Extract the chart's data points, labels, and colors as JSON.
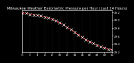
{
  "title": "Milwaukee Weather Barometric Pressure per Hour (Last 24 Hours)",
  "bg_color": "#000000",
  "plot_bg_color": "#000000",
  "line_color": "#ff0000",
  "marker_color": "#ffffff",
  "grid_color": "#555555",
  "title_color": "#ffffff",
  "tick_color": "#ffffff",
  "hours": [
    0,
    1,
    2,
    3,
    4,
    5,
    6,
    7,
    8,
    9,
    10,
    11,
    12,
    13,
    14,
    15,
    16,
    17,
    18,
    19,
    20,
    21,
    22,
    23,
    24
  ],
  "pressure": [
    30.18,
    30.17,
    30.15,
    30.13,
    30.12,
    30.1,
    30.08,
    30.05,
    30.02,
    29.98,
    29.93,
    29.88,
    29.82,
    29.76,
    29.7,
    29.63,
    29.57,
    29.51,
    29.46,
    29.41,
    29.37,
    29.33,
    29.3,
    29.27,
    29.25
  ],
  "ylim": [
    29.2,
    30.25
  ],
  "yticks": [
    29.2,
    29.4,
    29.6,
    29.8,
    30.0,
    30.2
  ],
  "ytick_labels": [
    "29.2",
    "29.4",
    "29.6",
    "29.8",
    "30.0",
    "30.2"
  ],
  "xticks": [
    0,
    2,
    4,
    6,
    8,
    10,
    12,
    14,
    16,
    18,
    20,
    22,
    24
  ],
  "xtick_labels": [
    "0",
    "2",
    "4",
    "6",
    "8",
    "10",
    "12",
    "14",
    "16",
    "18",
    "20",
    "22",
    "24"
  ],
  "title_fontsize": 3.8,
  "tick_fontsize": 3.0,
  "linewidth": 0.7,
  "markersize": 3.0,
  "marker_style": "x"
}
